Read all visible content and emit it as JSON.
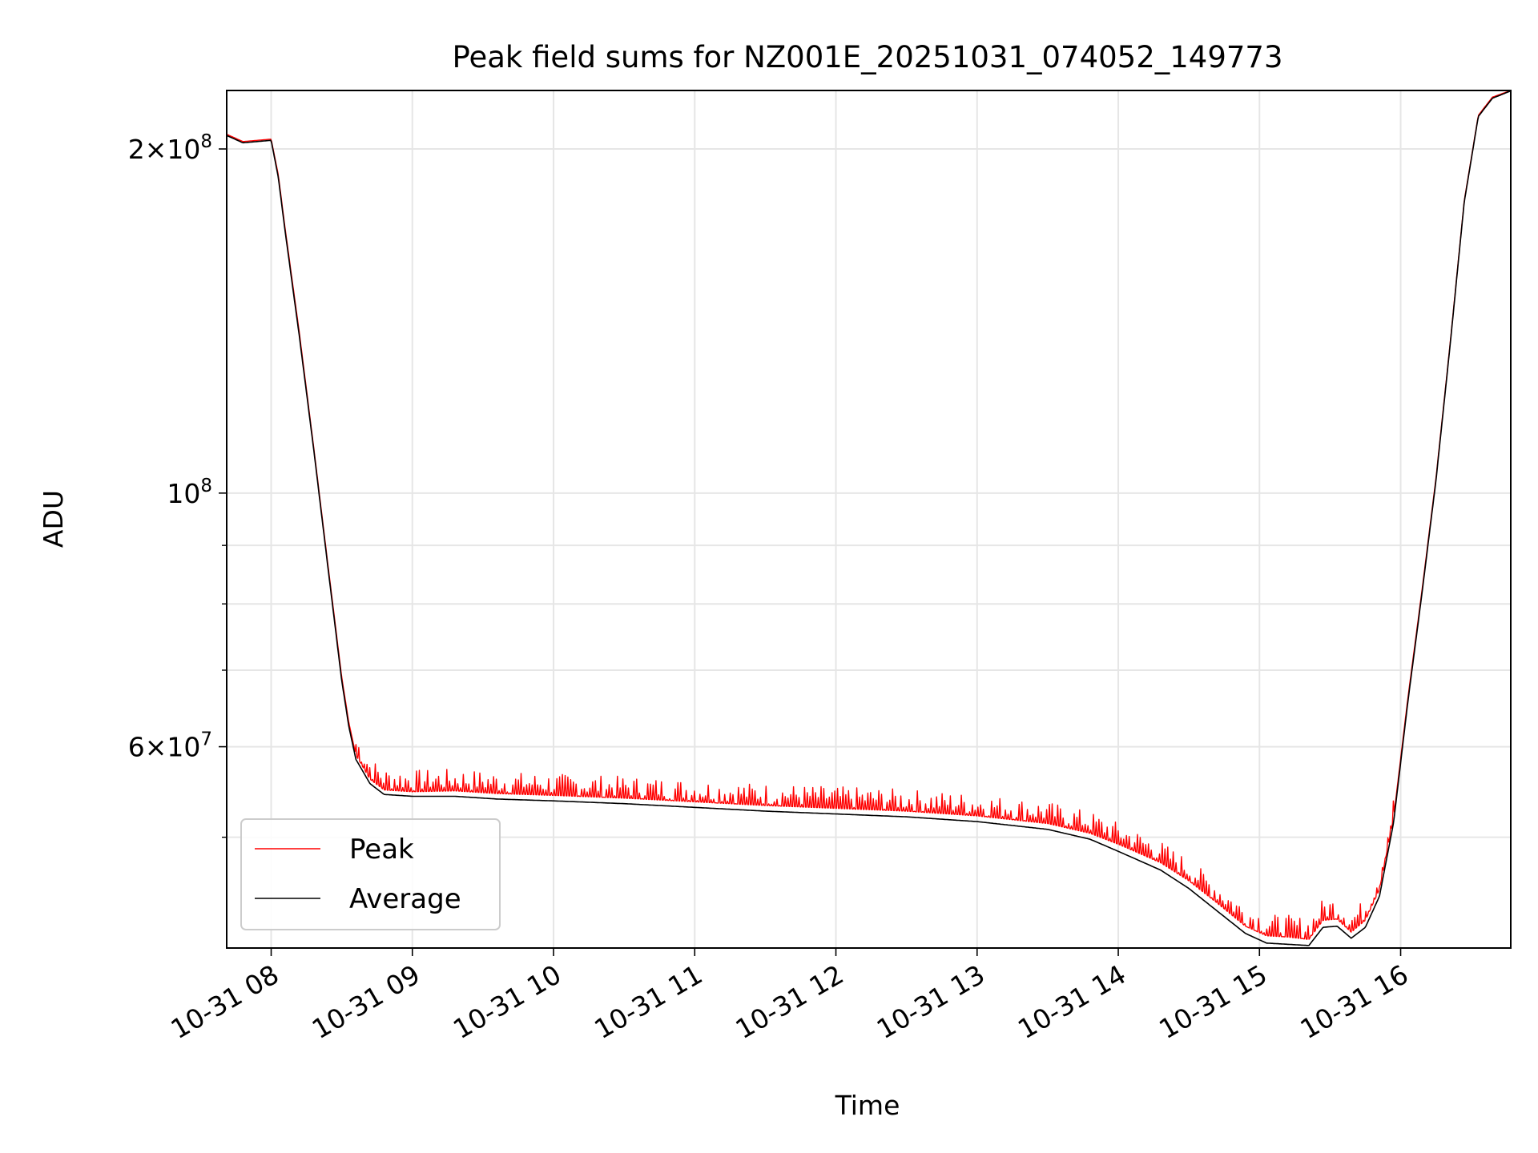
{
  "chart_data": {
    "type": "line",
    "title": "Peak field sums for NZ001E_20251031_074052_149773",
    "xlabel": "Time",
    "ylabel": "ADU",
    "yscale": "log",
    "grid": true,
    "legend_position": "lower-left",
    "xlim_hours": [
      7.685,
      16.78
    ],
    "ylim": [
      40000000,
      225000000
    ],
    "x_ticks": [
      {
        "value": 8,
        "label": "10-31 08"
      },
      {
        "value": 9,
        "label": "10-31 09"
      },
      {
        "value": 10,
        "label": "10-31 10"
      },
      {
        "value": 11,
        "label": "10-31 11"
      },
      {
        "value": 12,
        "label": "10-31 12"
      },
      {
        "value": 13,
        "label": "10-31 13"
      },
      {
        "value": 14,
        "label": "10-31 14"
      },
      {
        "value": 15,
        "label": "10-31 15"
      },
      {
        "value": 16,
        "label": "10-31 16"
      }
    ],
    "y_major_ticks": [
      {
        "value": 60000000,
        "base": "6",
        "exp": "7"
      },
      {
        "value": 100000000,
        "base": "",
        "exp": "8"
      },
      {
        "value": 200000000,
        "base": "2",
        "exp": "8"
      }
    ],
    "y_minor_ticks": [
      50000000,
      70000000,
      80000000,
      90000000
    ],
    "series": [
      {
        "name": "Peak",
        "color": "#ff0000",
        "spike_range_hours": [
          8.6,
          15.95
        ],
        "spike_height_fraction": 0.045,
        "points": [
          [
            7.685,
            206000000
          ],
          [
            7.8,
            203000000
          ],
          [
            7.9,
            203500000
          ],
          [
            8.0,
            204000000
          ],
          [
            8.05,
            190000000
          ],
          [
            8.1,
            170000000
          ],
          [
            8.2,
            138000000
          ],
          [
            8.3,
            110000000
          ],
          [
            8.4,
            87000000
          ],
          [
            8.5,
            69000000
          ],
          [
            8.55,
            63000000
          ],
          [
            8.6,
            59000000
          ],
          [
            8.7,
            56200000
          ],
          [
            8.8,
            55000000
          ],
          [
            9.0,
            54800000
          ],
          [
            9.3,
            54900000
          ],
          [
            9.6,
            54600000
          ],
          [
            10.0,
            54400000
          ],
          [
            10.5,
            54100000
          ],
          [
            11.0,
            53700000
          ],
          [
            11.5,
            53300000
          ],
          [
            12.0,
            53000000
          ],
          [
            12.5,
            52700000
          ],
          [
            13.0,
            52200000
          ],
          [
            13.5,
            51400000
          ],
          [
            13.8,
            50400000
          ],
          [
            14.0,
            49300000
          ],
          [
            14.3,
            47500000
          ],
          [
            14.5,
            45800000
          ],
          [
            14.7,
            43800000
          ],
          [
            14.9,
            41800000
          ],
          [
            15.05,
            41000000
          ],
          [
            15.2,
            40900000
          ],
          [
            15.35,
            40700000
          ],
          [
            15.45,
            42300000
          ],
          [
            15.55,
            42400000
          ],
          [
            15.65,
            41300000
          ],
          [
            15.75,
            42300000
          ],
          [
            15.85,
            45000000
          ],
          [
            15.95,
            52000000
          ],
          [
            16.05,
            66000000
          ],
          [
            16.15,
            82000000
          ],
          [
            16.25,
            103000000
          ],
          [
            16.35,
            135000000
          ],
          [
            16.45,
            180000000
          ],
          [
            16.55,
            214000000
          ],
          [
            16.65,
            222000000
          ],
          [
            16.78,
            225000000
          ]
        ]
      },
      {
        "name": "Average",
        "color": "#000000",
        "points": [
          [
            7.685,
            205500000
          ],
          [
            7.8,
            202500000
          ],
          [
            7.9,
            203000000
          ],
          [
            8.0,
            203500000
          ],
          [
            8.05,
            189000000
          ],
          [
            8.1,
            169000000
          ],
          [
            8.2,
            137000000
          ],
          [
            8.3,
            109500000
          ],
          [
            8.4,
            86500000
          ],
          [
            8.5,
            68500000
          ],
          [
            8.55,
            62500000
          ],
          [
            8.6,
            58500000
          ],
          [
            8.7,
            55700000
          ],
          [
            8.8,
            54500000
          ],
          [
            9.0,
            54300000
          ],
          [
            9.3,
            54300000
          ],
          [
            9.6,
            54000000
          ],
          [
            10.0,
            53800000
          ],
          [
            10.5,
            53500000
          ],
          [
            11.0,
            53100000
          ],
          [
            11.5,
            52700000
          ],
          [
            12.0,
            52400000
          ],
          [
            12.5,
            52100000
          ],
          [
            13.0,
            51600000
          ],
          [
            13.5,
            50800000
          ],
          [
            13.8,
            49800000
          ],
          [
            14.0,
            48600000
          ],
          [
            14.3,
            46800000
          ],
          [
            14.5,
            45100000
          ],
          [
            14.7,
            43100000
          ],
          [
            14.9,
            41200000
          ],
          [
            15.05,
            40400000
          ],
          [
            15.2,
            40300000
          ],
          [
            15.35,
            40200000
          ],
          [
            15.45,
            41700000
          ],
          [
            15.55,
            41800000
          ],
          [
            15.65,
            40800000
          ],
          [
            15.75,
            41700000
          ],
          [
            15.85,
            44400000
          ],
          [
            15.95,
            51500000
          ],
          [
            16.05,
            65500000
          ],
          [
            16.15,
            81500000
          ],
          [
            16.25,
            102500000
          ],
          [
            16.35,
            134500000
          ],
          [
            16.45,
            179500000
          ],
          [
            16.55,
            213500000
          ],
          [
            16.65,
            221500000
          ],
          [
            16.78,
            224800000
          ]
        ]
      }
    ]
  }
}
